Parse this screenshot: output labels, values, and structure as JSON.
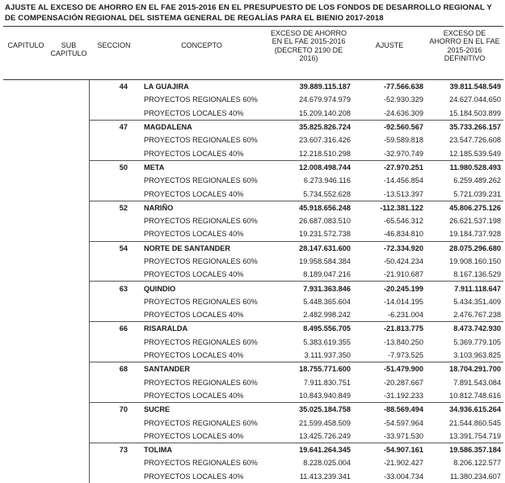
{
  "header": {
    "title": "AJUSTE AL EXCESO DE AHORRO EN EL FAE 2015-2016 EN EL PRESUPUESTO DE LOS FONDOS DE DESARROLLO REGIONAL Y DE COMPENSACIÓN REGIONAL DEL SISTEMA GENERAL DE REGALÍAS PARA EL BIENIO 2017-2018"
  },
  "table": {
    "columns": [
      "CAPITULO",
      "SUB CAPITULO",
      "SECCION",
      "CONCEPTO",
      "EXCESO DE AHORRO EN EL FAE 2015-2016 (DECRETO 2190 DE 2016)",
      "AJUSTE",
      "EXCESO DE AHORRO EN EL FAE 2015-2016 DEFINITIVO"
    ],
    "sections": [
      {
        "seccion": "44",
        "concepto": "LA GUAJIRA",
        "values": [
          "39.889.115.187",
          "-77.566.638",
          "39.811.548.549"
        ],
        "items": [
          {
            "concepto": "PROYECTOS REGIONALES 60%",
            "values": [
              "24.679.974.979",
              "-52.930.329",
              "24.627.044.650"
            ]
          },
          {
            "concepto": "PROYECTOS LOCALES 40%",
            "values": [
              "15.209.140.208",
              "-24.636.309",
              "15.184.503.899"
            ]
          }
        ]
      },
      {
        "seccion": "47",
        "concepto": "MAGDALENA",
        "values": [
          "35.825.826.724",
          "-92.560.567",
          "35.733.266.157"
        ],
        "items": [
          {
            "concepto": "PROYECTOS REGIONALES 60%",
            "values": [
              "23.607.316.426",
              "-59.589.818",
              "23.547.726.608"
            ]
          },
          {
            "concepto": "PROYECTOS LOCALES 40%",
            "values": [
              "12.218.510.298",
              "-32.970.749",
              "12.185.539.549"
            ]
          }
        ]
      },
      {
        "seccion": "50",
        "concepto": "META",
        "values": [
          "12.008.498.744",
          "-27.970.251",
          "11.980.528.493"
        ],
        "items": [
          {
            "concepto": "PROYECTOS REGIONALES 60%",
            "values": [
              "6.273.946.116",
              "-14.456.854",
              "6.259.489.262"
            ]
          },
          {
            "concepto": "PROYECTOS LOCALES 40%",
            "values": [
              "5.734.552.628",
              "-13.513.397",
              "5.721.039.231"
            ]
          }
        ]
      },
      {
        "seccion": "52",
        "concepto": "NARIÑO",
        "values": [
          "45.918.656.248",
          "-112.381.122",
          "45.806.275.126"
        ],
        "items": [
          {
            "concepto": "PROYECTOS REGIONALES 60%",
            "values": [
              "26.687.083.510",
              "-65.546.312",
              "26.621.537.198"
            ]
          },
          {
            "concepto": "PROYECTOS LOCALES 40%",
            "values": [
              "19.231.572.738",
              "-46.834.810",
              "19.184.737.928"
            ]
          }
        ]
      },
      {
        "seccion": "54",
        "concepto": "NORTE DE SANTANDER",
        "values": [
          "28.147.631.600",
          "-72.334.920",
          "28.075.296.680"
        ],
        "items": [
          {
            "concepto": "PROYECTOS REGIONALES 60%",
            "values": [
              "19.958.584.384",
              "-50.424.234",
              "19.908.160.150"
            ]
          },
          {
            "concepto": "PROYECTOS LOCALES 40%",
            "values": [
              "8.189.047.216",
              "-21.910.687",
              "8.167.136.529"
            ]
          }
        ]
      },
      {
        "seccion": "63",
        "concepto": "QUINDIO",
        "values": [
          "7.931.363.846",
          "-20.245.199",
          "7.911.118.647"
        ],
        "items": [
          {
            "concepto": "PROYECTOS REGIONALES 60%",
            "values": [
              "5.448.365.604",
              "-14.014.195",
              "5.434.351.409"
            ]
          },
          {
            "concepto": "PROYECTOS LOCALES 40%",
            "values": [
              "2.482.998.242",
              "-6.231.004",
              "2.476.767.238"
            ]
          }
        ]
      },
      {
        "seccion": "66",
        "concepto": "RISARALDA",
        "values": [
          "8.495.556.705",
          "-21.813.775",
          "8.473.742.930"
        ],
        "items": [
          {
            "concepto": "PROYECTOS REGIONALES 60%",
            "values": [
              "5.383.619.355",
              "-13.840.250",
              "5.369.779.105"
            ]
          },
          {
            "concepto": "PROYECTOS LOCALES 40%",
            "values": [
              "3.111.937.350",
              "-7.973.525",
              "3.103.963.825"
            ]
          }
        ]
      },
      {
        "seccion": "68",
        "concepto": "SANTANDER",
        "values": [
          "18.755.771.600",
          "-51.479.900",
          "18.704.291.700"
        ],
        "items": [
          {
            "concepto": "PROYECTOS REGIONALES 60%",
            "values": [
              "7.911.830.751",
              "-20.287.667",
              "7.891.543.084"
            ]
          },
          {
            "concepto": "PROYECTOS LOCALES 40%",
            "values": [
              "10.843.940.849",
              "-31.192.233",
              "10.812.748.616"
            ]
          }
        ]
      },
      {
        "seccion": "70",
        "concepto": "SUCRE",
        "values": [
          "35.025.184.758",
          "-88.569.494",
          "34.936.615.264"
        ],
        "items": [
          {
            "concepto": "PROYECTOS REGIONALES 60%",
            "values": [
              "21.599.458.509",
              "-54.597.964",
              "21.544.860.545"
            ]
          },
          {
            "concepto": "PROYECTOS LOCALES 40%",
            "values": [
              "13.425.726.249",
              "-33.971.530",
              "13.391.754.719"
            ]
          }
        ]
      },
      {
        "seccion": "73",
        "concepto": "TOLIMA",
        "values": [
          "19.641.264.345",
          "-54.907.161",
          "19.586.357.184"
        ],
        "items": [
          {
            "concepto": "PROYECTOS REGIONALES 60%",
            "values": [
              "8.228.025.004",
              "-21.902.427",
              "8.206.122.577"
            ]
          },
          {
            "concepto": "PROYECTOS LOCALES 40%",
            "values": [
              "11.413.239.341",
              "-33.004.734",
              "11.380.234.607"
            ]
          }
        ]
      }
    ]
  }
}
